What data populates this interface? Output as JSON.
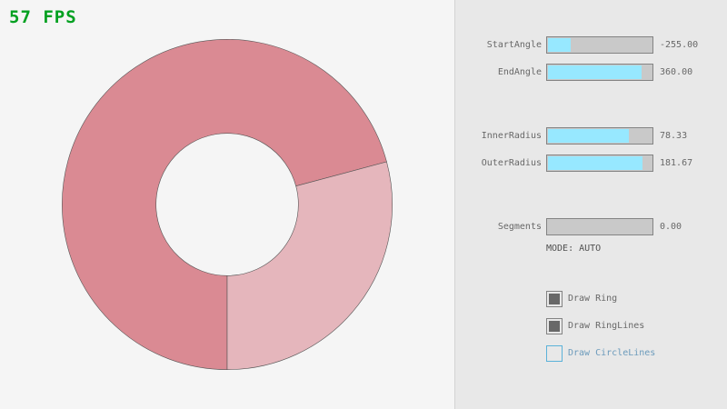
{
  "fps": {
    "text": "57 FPS",
    "color": "#00a020"
  },
  "ring": {
    "start_angle": -255,
    "end_angle": 360,
    "inner_radius": 78.33,
    "outer_radius": 181.67,
    "fill_color": "#da8a93",
    "overlap_color": "#e5b6bc"
  },
  "controls": {
    "sliders": [
      {
        "label": "StartAngle",
        "value": "-255.00",
        "fill": 0.217
      },
      {
        "label": "EndAngle",
        "value": "360.00",
        "fill": 0.9
      },
      {
        "label": "InnerRadius",
        "value": "78.33",
        "fill": 0.783
      },
      {
        "label": "OuterRadius",
        "value": "181.67",
        "fill": 0.908
      },
      {
        "label": "Segments",
        "value": "0.00",
        "fill": 0
      }
    ],
    "mode": "MODE: AUTO",
    "checkboxes": [
      {
        "label": "Draw Ring",
        "checked": true
      },
      {
        "label": "Draw RingLines",
        "checked": true
      },
      {
        "label": "Draw CircleLines",
        "checked": false
      }
    ]
  }
}
